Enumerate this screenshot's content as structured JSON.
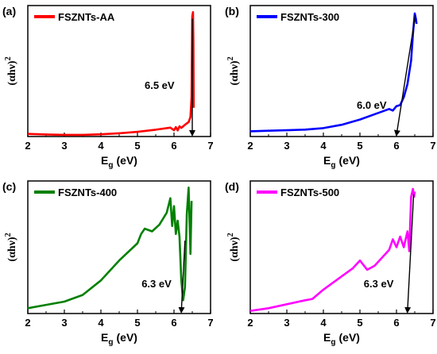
{
  "chart_data": [
    {
      "type": "line",
      "panel_label": "(a)",
      "series": [
        {
          "name": "FSZNTs-AA",
          "color": "#ff0000",
          "points": [
            [
              2.0,
              0.02
            ],
            [
              2.5,
              0.016
            ],
            [
              3.0,
              0.013
            ],
            [
              3.5,
              0.013
            ],
            [
              4.0,
              0.017
            ],
            [
              4.5,
              0.025
            ],
            [
              5.0,
              0.036
            ],
            [
              5.5,
              0.052
            ],
            [
              5.9,
              0.068
            ],
            [
              6.0,
              0.048
            ],
            [
              6.05,
              0.072
            ],
            [
              6.1,
              0.046
            ],
            [
              6.15,
              0.078
            ],
            [
              6.2,
              0.066
            ],
            [
              6.3,
              0.09
            ],
            [
              6.4,
              0.11
            ],
            [
              6.45,
              0.15
            ],
            [
              6.48,
              0.3
            ],
            [
              6.5,
              0.92
            ],
            [
              6.52,
              0.95
            ],
            [
              6.53,
              0.72
            ],
            [
              6.54,
              0.22
            ]
          ]
        }
      ],
      "annotation": {
        "text": "6.5 eV",
        "arrow_x": 6.5
      },
      "xlabel": "E",
      "xlabel_sub": "g",
      "xlabel_unit": "(eV)",
      "ylabel": "(αhν)",
      "ylabel_sup": "2",
      "xlim": [
        2,
        7
      ],
      "xticks": [
        2,
        3,
        4,
        5,
        6,
        7
      ],
      "ylim": [
        0,
        1
      ],
      "legend_loc": "top-left"
    },
    {
      "type": "line",
      "panel_label": "(b)",
      "series": [
        {
          "name": "FSZNTs-300",
          "color": "#0000ff",
          "points": [
            [
              2.0,
              0.04
            ],
            [
              2.5,
              0.044
            ],
            [
              3.0,
              0.048
            ],
            [
              3.5,
              0.053
            ],
            [
              4.0,
              0.064
            ],
            [
              4.5,
              0.09
            ],
            [
              5.0,
              0.13
            ],
            [
              5.5,
              0.18
            ],
            [
              5.8,
              0.21
            ],
            [
              5.9,
              0.198
            ],
            [
              6.0,
              0.232
            ],
            [
              6.1,
              0.24
            ],
            [
              6.2,
              0.3
            ],
            [
              6.3,
              0.4
            ],
            [
              6.4,
              0.58
            ],
            [
              6.45,
              0.78
            ],
            [
              6.5,
              0.94
            ],
            [
              6.53,
              0.9
            ],
            [
              6.55,
              0.86
            ]
          ]
        }
      ],
      "annotation": {
        "text": "6.0 eV",
        "arrow_x": 6.0
      },
      "xlabel": "E",
      "xlabel_sub": "g",
      "xlabel_unit": "(eV)",
      "ylabel": "(αhν)",
      "ylabel_sup": "2",
      "xlim": [
        2,
        7
      ],
      "xticks": [
        2,
        3,
        4,
        5,
        6,
        7
      ],
      "ylim": [
        0,
        1
      ],
      "legend_loc": "top-left"
    },
    {
      "type": "line",
      "panel_label": "(c)",
      "series": [
        {
          "name": "FSZNTs-400",
          "color": "#008000",
          "points": [
            [
              2.0,
              0.04
            ],
            [
              2.5,
              0.065
            ],
            [
              3.0,
              0.09
            ],
            [
              3.5,
              0.14
            ],
            [
              4.0,
              0.25
            ],
            [
              4.5,
              0.4
            ],
            [
              5.0,
              0.53
            ],
            [
              5.1,
              0.6
            ],
            [
              5.2,
              0.64
            ],
            [
              5.4,
              0.62
            ],
            [
              5.6,
              0.67
            ],
            [
              5.8,
              0.76
            ],
            [
              5.9,
              0.87
            ],
            [
              5.95,
              0.66
            ],
            [
              6.0,
              0.81
            ],
            [
              6.05,
              0.6
            ],
            [
              6.1,
              0.7
            ],
            [
              6.15,
              0.58
            ],
            [
              6.2,
              0.25
            ],
            [
              6.25,
              0.1
            ],
            [
              6.3,
              0.2
            ],
            [
              6.35,
              0.75
            ],
            [
              6.4,
              0.95
            ],
            [
              6.45,
              0.45
            ],
            [
              6.48,
              0.85
            ]
          ]
        }
      ],
      "annotation": {
        "text": "6.3 eV",
        "arrow_x": 6.2
      },
      "xlabel": "E",
      "xlabel_sub": "g",
      "xlabel_unit": "(eV)",
      "ylabel": "(αhν)",
      "ylabel_sup": "2",
      "xlim": [
        2,
        7
      ],
      "xticks": [
        2,
        3,
        4,
        5,
        6,
        7
      ],
      "ylim": [
        0,
        1
      ],
      "legend_loc": "top-left"
    },
    {
      "type": "line",
      "panel_label": "(d)",
      "series": [
        {
          "name": "FSZNTs-500",
          "color": "#ff00ff",
          "points": [
            [
              2.0,
              0.02
            ],
            [
              2.5,
              0.04
            ],
            [
              3.0,
              0.07
            ],
            [
              3.5,
              0.1
            ],
            [
              3.7,
              0.11
            ],
            [
              4.0,
              0.18
            ],
            [
              4.5,
              0.28
            ],
            [
              4.8,
              0.34
            ],
            [
              5.0,
              0.4
            ],
            [
              5.2,
              0.33
            ],
            [
              5.4,
              0.36
            ],
            [
              5.6,
              0.42
            ],
            [
              5.8,
              0.48
            ],
            [
              5.9,
              0.56
            ],
            [
              6.0,
              0.5
            ],
            [
              6.1,
              0.58
            ],
            [
              6.2,
              0.5
            ],
            [
              6.25,
              0.56
            ],
            [
              6.3,
              0.62
            ],
            [
              6.35,
              0.47
            ],
            [
              6.4,
              0.88
            ],
            [
              6.45,
              0.94
            ],
            [
              6.48,
              0.88
            ],
            [
              6.5,
              0.92
            ]
          ]
        }
      ],
      "annotation": {
        "text": "6.3 eV",
        "arrow_x": 6.3
      },
      "xlabel": "E",
      "xlabel_sub": "g",
      "xlabel_unit": "(eV)",
      "ylabel": "(αhν)",
      "ylabel_sup": "2",
      "xlim": [
        2,
        7
      ],
      "xticks": [
        2,
        3,
        4,
        5,
        6,
        7
      ],
      "ylim": [
        0,
        1
      ],
      "legend_loc": "top-left"
    }
  ]
}
